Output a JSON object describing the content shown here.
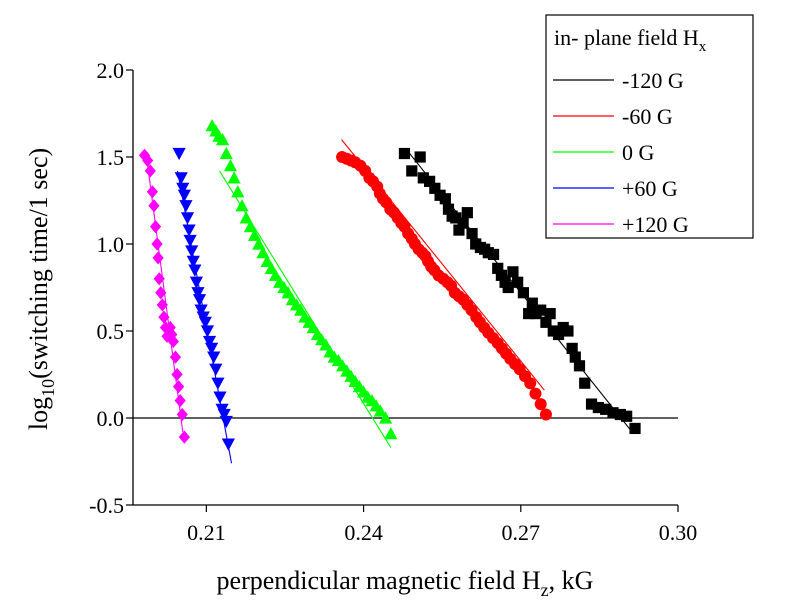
{
  "chart_data": {
    "type": "scatter",
    "xlabel": {
      "main": "perpendicular magnetic field H",
      "sub": "z",
      "suffix": ", kG"
    },
    "ylabel": {
      "pre": "log",
      "sub": "10",
      "post": "(switching time/1 sec)"
    },
    "xlim": [
      0.196,
      0.3
    ],
    "ylim": [
      -0.5,
      2.0
    ],
    "xticks": [
      0.21,
      0.24,
      0.27,
      0.3
    ],
    "xtick_labels": [
      "0.21",
      "0.24",
      "0.27",
      "0.30"
    ],
    "yticks": [
      -0.5,
      0.0,
      0.5,
      1.0,
      1.5,
      2.0
    ],
    "ytick_labels": [
      "-0.5",
      "0.0",
      "0.5",
      "1.0",
      "1.5",
      "2.0"
    ],
    "reference_line_y": 0.0,
    "grid": false,
    "legend": {
      "title": {
        "main": "in- plane field H",
        "sub": "x"
      },
      "placement": "top-right"
    },
    "series": [
      {
        "name": "-120 G",
        "color": "#000000",
        "marker": "square",
        "x": [
          0.2478,
          0.2492,
          0.2508,
          0.2514,
          0.2526,
          0.2536,
          0.2546,
          0.2556,
          0.2562,
          0.2569,
          0.2576,
          0.2582,
          0.259,
          0.2598,
          0.2607,
          0.2614,
          0.2623,
          0.2631,
          0.2638,
          0.2648,
          0.2656,
          0.2663,
          0.267,
          0.2676,
          0.2685,
          0.2694,
          0.2705,
          0.2715,
          0.2722,
          0.2729,
          0.2738,
          0.2748,
          0.2756,
          0.2762,
          0.2772,
          0.2781,
          0.279,
          0.2798,
          0.2804,
          0.2812,
          0.2822,
          0.2835,
          0.2848,
          0.2862,
          0.2876,
          0.289,
          0.2902,
          0.2918
        ],
        "y": [
          1.52,
          1.42,
          1.5,
          1.38,
          1.36,
          1.32,
          1.28,
          1.26,
          1.2,
          1.16,
          1.15,
          1.08,
          1.12,
          1.18,
          1.06,
          1.0,
          0.98,
          0.97,
          0.95,
          0.94,
          0.86,
          0.82,
          0.78,
          0.75,
          0.84,
          0.78,
          0.72,
          0.6,
          0.66,
          0.6,
          0.62,
          0.55,
          0.6,
          0.5,
          0.48,
          0.52,
          0.5,
          0.4,
          0.35,
          0.3,
          0.2,
          0.08,
          0.06,
          0.05,
          0.03,
          0.02,
          0.01,
          -0.06
        ],
        "fit": {
          "x": [
            0.248,
            0.2915
          ],
          "y": [
            1.55,
            -0.09
          ]
        }
      },
      {
        "name": "-60 G",
        "color": "#ff0000",
        "marker": "circle",
        "x": [
          0.2359,
          0.2368,
          0.2376,
          0.2384,
          0.2394,
          0.2403,
          0.2411,
          0.2418,
          0.2426,
          0.2431,
          0.2437,
          0.2443,
          0.2451,
          0.2458,
          0.2465,
          0.2472,
          0.2478,
          0.2485,
          0.2492,
          0.2498,
          0.2505,
          0.2512,
          0.2518,
          0.2523,
          0.2529,
          0.2535,
          0.2543,
          0.2552,
          0.256,
          0.2567,
          0.2574,
          0.2582,
          0.259,
          0.2598,
          0.2606,
          0.2615,
          0.2622,
          0.263,
          0.2638,
          0.2647,
          0.2656,
          0.2664,
          0.2672,
          0.268,
          0.2689,
          0.2698,
          0.2708,
          0.2718,
          0.2728,
          0.2738,
          0.2748
        ],
        "y": [
          1.5,
          1.49,
          1.48,
          1.47,
          1.45,
          1.42,
          1.38,
          1.36,
          1.33,
          1.29,
          1.26,
          1.24,
          1.2,
          1.18,
          1.15,
          1.12,
          1.1,
          1.06,
          1.03,
          1.0,
          0.97,
          0.95,
          0.93,
          0.9,
          0.87,
          0.85,
          0.82,
          0.8,
          0.78,
          0.76,
          0.72,
          0.7,
          0.68,
          0.65,
          0.62,
          0.58,
          0.55,
          0.52,
          0.49,
          0.46,
          0.43,
          0.4,
          0.37,
          0.34,
          0.31,
          0.28,
          0.24,
          0.2,
          0.14,
          0.08,
          0.02
        ],
        "fit": {
          "x": [
            0.2358,
            0.2745
          ],
          "y": [
            1.6,
            0.16
          ]
        }
      },
      {
        "name": "0 G",
        "color": "#00ff00",
        "marker": "triangle-up",
        "x": [
          0.2111,
          0.2118,
          0.2124,
          0.2131,
          0.2138,
          0.2146,
          0.2153,
          0.216,
          0.2168,
          0.2176,
          0.2184,
          0.2192,
          0.22,
          0.2208,
          0.2216,
          0.2224,
          0.2232,
          0.224,
          0.2248,
          0.2256,
          0.2264,
          0.2272,
          0.228,
          0.2288,
          0.2296,
          0.2304,
          0.2312,
          0.232,
          0.2328,
          0.2336,
          0.2344,
          0.2352,
          0.236,
          0.2368,
          0.2376,
          0.2384,
          0.2392,
          0.24,
          0.2408,
          0.2416,
          0.2424,
          0.2432,
          0.2442,
          0.2452
        ],
        "y": [
          1.68,
          1.65,
          1.62,
          1.6,
          1.52,
          1.45,
          1.38,
          1.3,
          1.22,
          1.15,
          1.1,
          1.05,
          1.0,
          0.95,
          0.9,
          0.86,
          0.82,
          0.78,
          0.75,
          0.72,
          0.68,
          0.65,
          0.62,
          0.58,
          0.55,
          0.52,
          0.48,
          0.45,
          0.42,
          0.38,
          0.35,
          0.33,
          0.3,
          0.27,
          0.24,
          0.21,
          0.18,
          0.15,
          0.12,
          0.1,
          0.07,
          0.04,
          0.0,
          -0.09
        ],
        "fit": {
          "x": [
            0.2125,
            0.2452
          ],
          "y": [
            1.42,
            -0.17
          ]
        }
      },
      {
        "name": "+60 G",
        "color": "#0000ff",
        "marker": "triangle-down",
        "x": [
          0.2048,
          0.2052,
          0.2055,
          0.2058,
          0.2061,
          0.2064,
          0.2067,
          0.2069,
          0.2072,
          0.2075,
          0.2078,
          0.2081,
          0.2084,
          0.2087,
          0.209,
          0.2094,
          0.2098,
          0.2102,
          0.2106,
          0.211,
          0.2114,
          0.2118,
          0.2122,
          0.2126,
          0.213,
          0.2134,
          0.2138,
          0.2142
        ],
        "y": [
          1.52,
          1.38,
          1.32,
          1.28,
          1.22,
          1.15,
          1.08,
          1.02,
          0.96,
          0.9,
          0.85,
          0.78,
          0.72,
          0.68,
          0.62,
          0.58,
          0.55,
          0.5,
          0.44,
          0.4,
          0.35,
          0.28,
          0.2,
          0.12,
          0.05,
          0.02,
          -0.02,
          -0.15
        ],
        "fit": {
          "x": [
            0.2045,
            0.2148
          ],
          "y": [
            1.42,
            -0.26
          ]
        }
      },
      {
        "name": "+120 G",
        "color": "#ff00ff",
        "marker": "diamond",
        "x": [
          0.1982,
          0.1988,
          0.1993,
          0.1997,
          0.2,
          0.2003,
          0.2006,
          0.2008,
          0.201,
          0.2013,
          0.2016,
          0.2019,
          0.2022,
          0.2025,
          0.2028,
          0.2031,
          0.2034,
          0.2037,
          0.2041,
          0.2044,
          0.2047,
          0.205,
          0.2054,
          0.2058
        ],
        "y": [
          1.51,
          1.48,
          1.42,
          1.3,
          1.22,
          1.1,
          1.0,
          0.92,
          0.8,
          0.72,
          0.65,
          0.58,
          0.52,
          0.47,
          0.5,
          0.52,
          0.48,
          0.44,
          0.35,
          0.25,
          0.18,
          0.1,
          0.02,
          -0.11
        ],
        "fit": {
          "x": [
            0.1985,
            0.2055
          ],
          "y": [
            1.52,
            -0.08
          ]
        }
      }
    ]
  }
}
